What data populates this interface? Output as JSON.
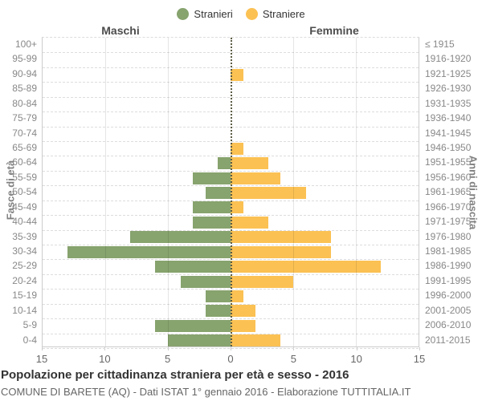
{
  "legend": {
    "items": [
      {
        "label": "Stranieri",
        "color": "#87a36e"
      },
      {
        "label": "Straniere",
        "color": "#fbc153"
      }
    ]
  },
  "headers": {
    "left": "Maschi",
    "right": "Femmine"
  },
  "axis": {
    "left_title": "Fasce di età",
    "right_title": "Anni di nascita",
    "x_tick_labels": [
      "15",
      "10",
      "5",
      "0",
      "5",
      "10",
      "15"
    ],
    "x_tick_values": [
      -15,
      -10,
      -5,
      0,
      5,
      10,
      15
    ]
  },
  "title": "Popolazione per cittadinanza straniera per età e sesso - 2016",
  "subtitle": "COMUNE DI BARETE (AQ) - Dati ISTAT 1° gennaio 2016 - Elaborazione TUTTITALIA.IT",
  "chart_data": {
    "type": "bar",
    "subtype": "population-pyramid-horizontal",
    "categories_age": [
      "100+",
      "95-99",
      "90-94",
      "85-89",
      "80-84",
      "75-79",
      "70-74",
      "65-69",
      "60-64",
      "55-59",
      "50-54",
      "45-49",
      "40-44",
      "35-39",
      "30-34",
      "25-29",
      "20-24",
      "15-19",
      "10-14",
      "5-9",
      "0-4"
    ],
    "categories_birth_years": [
      "≤ 1915",
      "1916-1920",
      "1921-1925",
      "1926-1930",
      "1931-1935",
      "1936-1940",
      "1941-1945",
      "1946-1950",
      "1951-1955",
      "1956-1960",
      "1961-1965",
      "1966-1970",
      "1971-1975",
      "1976-1980",
      "1981-1985",
      "1986-1990",
      "1991-1995",
      "1996-2000",
      "2001-2005",
      "2006-2010",
      "2011-2015"
    ],
    "series": [
      {
        "name": "Stranieri",
        "side": "left",
        "color": "#87a36e",
        "values": [
          0,
          0,
          0,
          0,
          0,
          0,
          0,
          0,
          1,
          3,
          2,
          3,
          3,
          8,
          13,
          6,
          4,
          2,
          2,
          6,
          5
        ]
      },
      {
        "name": "Straniere",
        "side": "right",
        "color": "#fbc153",
        "values": [
          0,
          0,
          1,
          0,
          0,
          0,
          0,
          1,
          3,
          4,
          6,
          1,
          3,
          8,
          8,
          12,
          5,
          1,
          2,
          2,
          4
        ]
      }
    ],
    "xlim": [
      -15,
      15
    ],
    "x_gridlines": [
      -10,
      -5,
      5,
      10
    ],
    "grid": true,
    "legend_position": "top-center"
  }
}
